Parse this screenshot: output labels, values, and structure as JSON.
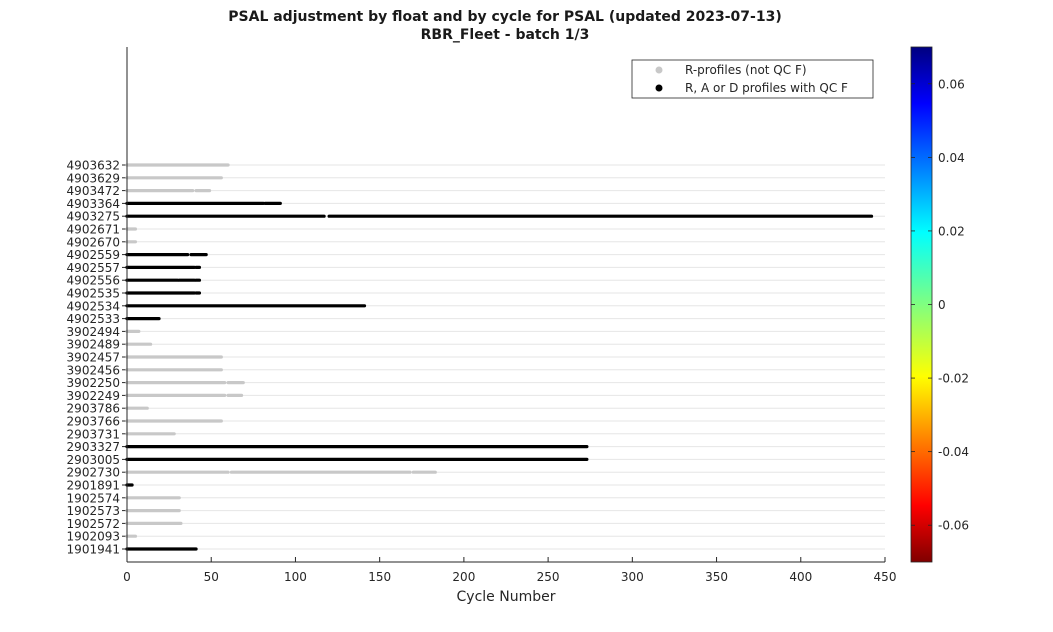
{
  "chart_data": {
    "type": "scatter",
    "title": "PSAL adjustment by float and by cycle for PSAL (updated 2023-07-13)",
    "subtitle": "RBR_Fleet - batch 1/3",
    "xlabel": "Cycle Number",
    "ylabel": "",
    "xlim": [
      0,
      450
    ],
    "xticks": [
      0,
      50,
      100,
      150,
      200,
      250,
      300,
      350,
      400,
      450
    ],
    "grid": "horizontal",
    "legend_position": "top-right",
    "legend": [
      {
        "label": "R-profiles (not QC F)",
        "color": "#c8c8c8"
      },
      {
        "label": "R, A or D profiles with QC F",
        "color": "#000000"
      }
    ],
    "colorbar": {
      "min": -0.07,
      "max": 0.07,
      "ticks": [
        -0.06,
        -0.04,
        -0.02,
        0,
        0.02,
        0.04,
        0.06
      ],
      "tick_labels": [
        "-0.06",
        "-0.04",
        "-0.02",
        "0",
        "0.02",
        "0.04",
        "0.06"
      ],
      "colormap": "jet"
    },
    "floats": [
      {
        "id": "4903632",
        "segments": [
          {
            "start": 0,
            "end": 60,
            "type": "r"
          }
        ]
      },
      {
        "id": "4903629",
        "segments": [
          {
            "start": 0,
            "end": 56,
            "type": "r"
          }
        ]
      },
      {
        "id": "4903472",
        "segments": [
          {
            "start": 0,
            "end": 39,
            "type": "r"
          },
          {
            "start": 41,
            "end": 49,
            "type": "r"
          }
        ]
      },
      {
        "id": "4903364",
        "segments": [
          {
            "start": 0,
            "end": 81,
            "type": "f"
          },
          {
            "start": 82,
            "end": 91,
            "type": "f"
          }
        ]
      },
      {
        "id": "4903275",
        "segments": [
          {
            "start": 0,
            "end": 117,
            "type": "f"
          },
          {
            "start": 120,
            "end": 442,
            "type": "f"
          }
        ]
      },
      {
        "id": "4902671",
        "segments": [
          {
            "start": 0,
            "end": 5,
            "type": "r"
          }
        ]
      },
      {
        "id": "4902670",
        "segments": [
          {
            "start": 0,
            "end": 5,
            "type": "r"
          }
        ]
      },
      {
        "id": "4902559",
        "segments": [
          {
            "start": 0,
            "end": 36,
            "type": "f"
          },
          {
            "start": 38,
            "end": 47,
            "type": "f"
          }
        ]
      },
      {
        "id": "4902557",
        "segments": [
          {
            "start": 0,
            "end": 40,
            "type": "f"
          },
          {
            "start": 41,
            "end": 43,
            "type": "f"
          }
        ]
      },
      {
        "id": "4902556",
        "segments": [
          {
            "start": 0,
            "end": 30,
            "type": "f"
          },
          {
            "start": 31,
            "end": 40,
            "type": "f"
          },
          {
            "start": 41,
            "end": 43,
            "type": "f"
          }
        ]
      },
      {
        "id": "4902535",
        "segments": [
          {
            "start": 0,
            "end": 40,
            "type": "f"
          },
          {
            "start": 41,
            "end": 43,
            "type": "f"
          }
        ]
      },
      {
        "id": "4902534",
        "segments": [
          {
            "start": 0,
            "end": 141,
            "type": "f"
          }
        ]
      },
      {
        "id": "4902533",
        "segments": [
          {
            "start": 0,
            "end": 19,
            "type": "f"
          }
        ]
      },
      {
        "id": "3902494",
        "segments": [
          {
            "start": 0,
            "end": 7,
            "type": "r"
          }
        ]
      },
      {
        "id": "3902489",
        "segments": [
          {
            "start": 0,
            "end": 14,
            "type": "r"
          }
        ]
      },
      {
        "id": "3902457",
        "segments": [
          {
            "start": 0,
            "end": 56,
            "type": "r"
          }
        ]
      },
      {
        "id": "3902456",
        "segments": [
          {
            "start": 0,
            "end": 56,
            "type": "r"
          }
        ]
      },
      {
        "id": "3902250",
        "segments": [
          {
            "start": 0,
            "end": 58,
            "type": "r"
          },
          {
            "start": 60,
            "end": 69,
            "type": "r"
          }
        ]
      },
      {
        "id": "3902249",
        "segments": [
          {
            "start": 0,
            "end": 58,
            "type": "r"
          },
          {
            "start": 60,
            "end": 68,
            "type": "r"
          }
        ]
      },
      {
        "id": "2903786",
        "segments": [
          {
            "start": 0,
            "end": 12,
            "type": "r"
          }
        ]
      },
      {
        "id": "2903766",
        "segments": [
          {
            "start": 0,
            "end": 56,
            "type": "r"
          }
        ]
      },
      {
        "id": "2903731",
        "segments": [
          {
            "start": 0,
            "end": 28,
            "type": "r"
          }
        ]
      },
      {
        "id": "2903327",
        "segments": [
          {
            "start": 0,
            "end": 273,
            "type": "f"
          }
        ]
      },
      {
        "id": "2903005",
        "segments": [
          {
            "start": 0,
            "end": 273,
            "type": "f"
          }
        ]
      },
      {
        "id": "2902730",
        "segments": [
          {
            "start": 0,
            "end": 60,
            "type": "r"
          },
          {
            "start": 62,
            "end": 168,
            "type": "r"
          },
          {
            "start": 170,
            "end": 183,
            "type": "r"
          }
        ]
      },
      {
        "id": "2901891",
        "segments": [
          {
            "start": 0,
            "end": 3,
            "type": "f"
          }
        ]
      },
      {
        "id": "1902574",
        "segments": [
          {
            "start": 0,
            "end": 31,
            "type": "r"
          }
        ]
      },
      {
        "id": "1902573",
        "segments": [
          {
            "start": 0,
            "end": 31,
            "type": "r"
          }
        ]
      },
      {
        "id": "1902572",
        "segments": [
          {
            "start": 0,
            "end": 32,
            "type": "r"
          }
        ]
      },
      {
        "id": "1902093",
        "segments": [
          {
            "start": 0,
            "end": 5,
            "type": "r"
          }
        ]
      },
      {
        "id": "1901941",
        "segments": [
          {
            "start": 0,
            "end": 41,
            "type": "f"
          }
        ]
      }
    ]
  }
}
